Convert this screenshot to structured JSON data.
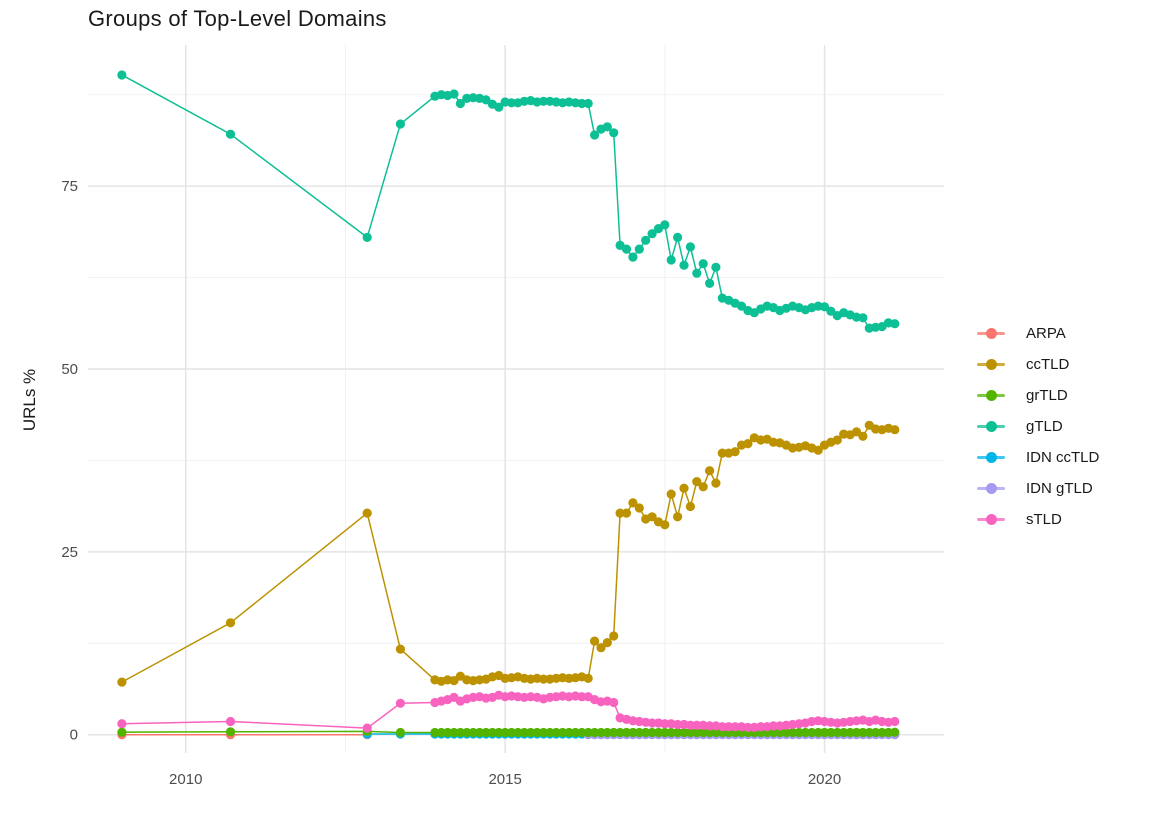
{
  "chart_data": {
    "type": "line",
    "title": "Groups of Top-Level Domains",
    "xlabel": "",
    "ylabel": "URLs %",
    "x_ticks": [
      2010,
      2015,
      2020
    ],
    "x_minor_ticks": [
      2012.5,
      2017.5
    ],
    "y_ticks": [
      0,
      25,
      50,
      75
    ],
    "y_minor_ticks": [
      12.5,
      37.5,
      62.5,
      87.5
    ],
    "x_range": [
      2008.47,
      2021.87
    ],
    "y_range": [
      -2.5,
      94.3
    ],
    "grid": true,
    "legend_position": "right",
    "background": "#ffffff",
    "grid_major_color": "#e4e4e4",
    "grid_minor_color": "#f1f1f1",
    "legend_order": [
      "ARPA",
      "ccTLD",
      "grTLD",
      "gTLD",
      "IDN ccTLD",
      "IDN gTLD",
      "sTLD"
    ],
    "series": [
      {
        "name": "ARPA",
        "color": "#F8766D",
        "early": [
          [
            2009.0,
            0.0
          ],
          [
            2010.7,
            0.0
          ],
          [
            2012.84,
            0.0
          ]
        ],
        "x_start": null,
        "x_step": null,
        "values": []
      },
      {
        "name": "IDN ccTLD",
        "color": "#00B4E8",
        "early": [
          [
            2012.84,
            0.1
          ],
          [
            2013.36,
            0.1
          ]
        ],
        "x_start": 2013.9,
        "x_step": 0.1,
        "values": [
          0.1,
          0.1,
          0.1,
          0.1,
          0.1,
          0.1,
          0.1,
          0.1,
          0.1,
          0.1,
          0.1,
          0.1,
          0.1,
          0.1,
          0.1,
          0.1,
          0.1,
          0.1,
          0.1,
          0.1,
          0.1,
          0.1,
          0.1,
          0.1,
          0.1,
          0.1,
          0.1,
          0.1,
          0.1,
          0.1,
          0.1,
          0.1,
          0.1,
          0.1,
          0.1,
          0.1,
          0.1,
          0.1,
          0.1,
          0.1,
          0.1,
          0.1,
          0.1,
          0.1,
          0.1,
          0.1,
          0.1,
          0.1,
          0.1,
          0.1,
          0.1,
          0.1,
          0.1,
          0.1,
          0.1,
          0.1,
          0.1,
          0.1,
          0.1,
          0.1,
          0.1,
          0.1,
          0.1,
          0.1,
          0.1,
          0.1,
          0.1,
          0.1,
          0.1,
          0.1,
          0.1,
          0.1,
          0.1
        ]
      },
      {
        "name": "IDN gTLD",
        "color": "#A49BF0",
        "early": [],
        "x_start": 2016.3,
        "x_step": 0.1,
        "values": [
          0.0,
          0.0,
          0.0,
          0.0,
          0.0,
          0.0,
          0.0,
          0.0,
          0.0,
          0.0,
          0.0,
          0.0,
          0.0,
          0.0,
          0.0,
          0.0,
          0.0,
          0.0,
          0.0,
          0.0,
          0.0,
          0.0,
          0.0,
          0.0,
          0.0,
          0.0,
          0.0,
          0.0,
          0.0,
          0.0,
          0.0,
          0.0,
          0.0,
          0.0,
          0.0,
          0.0,
          0.0,
          0.0,
          0.0,
          0.0,
          0.0,
          0.0,
          0.0,
          0.0,
          0.0,
          0.0,
          0.0,
          0.0,
          0.0
        ]
      },
      {
        "name": "grTLD",
        "color": "#53B400",
        "early": [
          [
            2009.0,
            0.35
          ],
          [
            2010.7,
            0.4
          ],
          [
            2012.84,
            0.45
          ],
          [
            2013.36,
            0.3
          ]
        ],
        "x_start": 2013.9,
        "x_step": 0.1,
        "values": [
          0.3,
          0.3,
          0.3,
          0.3,
          0.3,
          0.3,
          0.3,
          0.3,
          0.3,
          0.3,
          0.3,
          0.3,
          0.3,
          0.3,
          0.3,
          0.3,
          0.3,
          0.3,
          0.3,
          0.3,
          0.3,
          0.3,
          0.3,
          0.3,
          0.3,
          0.3,
          0.3,
          0.3,
          0.3,
          0.3,
          0.3,
          0.3,
          0.3,
          0.3,
          0.3,
          0.3,
          0.3,
          0.3,
          0.3,
          0.3,
          0.3,
          0.3,
          0.3,
          0.3,
          0.3,
          0.3,
          0.3,
          0.3,
          0.3,
          0.3,
          0.3,
          0.3,
          0.3,
          0.3,
          0.3,
          0.3,
          0.3,
          0.3,
          0.3,
          0.3,
          0.3,
          0.3,
          0.3,
          0.3,
          0.3,
          0.3,
          0.3,
          0.3,
          0.3,
          0.3,
          0.3,
          0.3,
          0.35
        ]
      },
      {
        "name": "sTLD",
        "color": "#F863C0",
        "early": [
          [
            2009.0,
            1.5
          ],
          [
            2010.7,
            1.8
          ],
          [
            2012.84,
            0.9
          ],
          [
            2013.36,
            4.3
          ]
        ],
        "x_start": 2013.9,
        "x_step": 0.1,
        "values": [
          4.4,
          4.6,
          4.8,
          5.1,
          4.6,
          4.9,
          5.1,
          5.2,
          5.0,
          5.1,
          5.4,
          5.2,
          5.3,
          5.2,
          5.1,
          5.2,
          5.1,
          4.9,
          5.1,
          5.2,
          5.3,
          5.2,
          5.3,
          5.2,
          5.2,
          4.8,
          4.5,
          4.6,
          4.4,
          2.3,
          2.1,
          1.9,
          1.8,
          1.7,
          1.6,
          1.6,
          1.5,
          1.5,
          1.4,
          1.4,
          1.3,
          1.3,
          1.3,
          1.2,
          1.2,
          1.1,
          1.1,
          1.1,
          1.1,
          1.0,
          1.0,
          1.1,
          1.1,
          1.2,
          1.2,
          1.3,
          1.4,
          1.5,
          1.6,
          1.8,
          1.9,
          1.8,
          1.7,
          1.6,
          1.7,
          1.8,
          1.9,
          2.0,
          1.8,
          2.0,
          1.8,
          1.7,
          1.8
        ]
      },
      {
        "name": "ccTLD",
        "color": "#BC9200",
        "early": [
          [
            2009.0,
            7.2
          ],
          [
            2010.7,
            15.3
          ],
          [
            2012.84,
            30.3
          ],
          [
            2013.36,
            11.7
          ]
        ],
        "x_start": 2013.9,
        "x_step": 0.1,
        "values": [
          7.5,
          7.3,
          7.5,
          7.4,
          8.0,
          7.5,
          7.4,
          7.5,
          7.6,
          7.9,
          8.1,
          7.7,
          7.8,
          7.9,
          7.7,
          7.6,
          7.7,
          7.6,
          7.6,
          7.7,
          7.8,
          7.7,
          7.8,
          7.9,
          7.7,
          12.8,
          11.9,
          12.6,
          13.5,
          30.3,
          30.3,
          31.7,
          31.0,
          29.5,
          29.8,
          29.1,
          28.7,
          32.9,
          29.8,
          33.7,
          31.2,
          34.6,
          33.9,
          36.1,
          34.4,
          38.5,
          38.5,
          38.7,
          39.6,
          39.8,
          40.6,
          40.3,
          40.4,
          40.0,
          39.9,
          39.6,
          39.2,
          39.3,
          39.5,
          39.2,
          38.9,
          39.6,
          40.0,
          40.3,
          41.1,
          41.0,
          41.4,
          40.8,
          42.3,
          41.8,
          41.7,
          41.9,
          41.7
        ]
      },
      {
        "name": "gTLD",
        "color": "#0DBF95",
        "early": [
          [
            2009.0,
            90.2
          ],
          [
            2010.7,
            82.1
          ],
          [
            2012.84,
            68.0
          ],
          [
            2013.36,
            83.5
          ]
        ],
        "x_start": 2013.9,
        "x_step": 0.1,
        "values": [
          87.3,
          87.5,
          87.4,
          87.6,
          86.3,
          87.0,
          87.1,
          87.0,
          86.8,
          86.2,
          85.8,
          86.5,
          86.4,
          86.4,
          86.6,
          86.7,
          86.5,
          86.6,
          86.6,
          86.5,
          86.4,
          86.5,
          86.4,
          86.3,
          86.3,
          82.0,
          82.8,
          83.1,
          82.3,
          66.9,
          66.4,
          65.3,
          66.4,
          67.6,
          68.5,
          69.2,
          69.7,
          64.9,
          68.0,
          64.2,
          66.7,
          63.1,
          64.4,
          61.7,
          63.9,
          59.7,
          59.4,
          59.0,
          58.6,
          58.0,
          57.7,
          58.2,
          58.6,
          58.4,
          58.0,
          58.3,
          58.6,
          58.4,
          58.1,
          58.4,
          58.6,
          58.5,
          57.9,
          57.3,
          57.7,
          57.4,
          57.1,
          57.0,
          55.6,
          55.7,
          55.8,
          56.3,
          56.2
        ]
      }
    ]
  }
}
